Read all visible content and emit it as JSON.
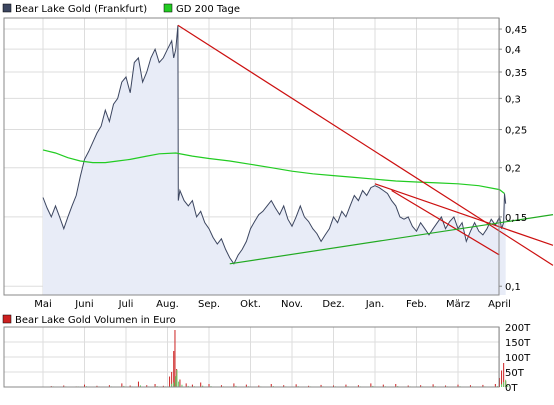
{
  "chart_data": [
    {
      "type": "line",
      "y_scale": "log",
      "ylim": [
        0.095,
        0.48
      ],
      "x_ticks": [
        "Mai",
        "Juni",
        "Juli",
        "Aug.",
        "Sep.",
        "Okt.",
        "Nov.",
        "Dez.",
        "Jan.",
        "Feb.",
        "März",
        "April"
      ],
      "y_ticks": [
        {
          "value": 0.1,
          "label": "0,1"
        },
        {
          "value": 0.15,
          "label": "0,15"
        },
        {
          "value": 0.2,
          "label": "0,2"
        },
        {
          "value": 0.25,
          "label": "0,25"
        },
        {
          "value": 0.3,
          "label": "0,3"
        },
        {
          "value": 0.35,
          "label": "0,35"
        },
        {
          "value": 0.4,
          "label": "0,4"
        },
        {
          "value": 0.45,
          "label": "0,45"
        }
      ],
      "grid": true,
      "legend": [
        {
          "label": "Bear Lake Gold (Frankfurt)",
          "color": "#3c4660"
        },
        {
          "label": "GD 200 Tage",
          "color": "#22cc22"
        }
      ],
      "series": [
        {
          "name": "Bear Lake Gold (Frankfurt)",
          "color": "#3c4660",
          "fill": "#e8ecf7",
          "points": [
            [
              0,
              0.168
            ],
            [
              0.1,
              0.158
            ],
            [
              0.2,
              0.15
            ],
            [
              0.3,
              0.16
            ],
            [
              0.4,
              0.15
            ],
            [
              0.5,
              0.14
            ],
            [
              0.6,
              0.15
            ],
            [
              0.7,
              0.16
            ],
            [
              0.8,
              0.17
            ],
            [
              0.9,
              0.19
            ],
            [
              1.0,
              0.21
            ],
            [
              1.1,
              0.22
            ],
            [
              1.2,
              0.232
            ],
            [
              1.3,
              0.245
            ],
            [
              1.4,
              0.255
            ],
            [
              1.5,
              0.28
            ],
            [
              1.6,
              0.262
            ],
            [
              1.7,
              0.29
            ],
            [
              1.8,
              0.3
            ],
            [
              1.9,
              0.33
            ],
            [
              2.0,
              0.34
            ],
            [
              2.1,
              0.31
            ],
            [
              2.2,
              0.37
            ],
            [
              2.3,
              0.38
            ],
            [
              2.4,
              0.33
            ],
            [
              2.5,
              0.35
            ],
            [
              2.6,
              0.38
            ],
            [
              2.7,
              0.4
            ],
            [
              2.8,
              0.37
            ],
            [
              2.9,
              0.38
            ],
            [
              3.0,
              0.4
            ],
            [
              3.1,
              0.42
            ],
            [
              3.15,
              0.38
            ],
            [
              3.2,
              0.4
            ],
            [
              3.25,
              0.46
            ],
            [
              3.26,
              0.165
            ],
            [
              3.3,
              0.175
            ],
            [
              3.4,
              0.165
            ],
            [
              3.5,
              0.16
            ],
            [
              3.6,
              0.165
            ],
            [
              3.7,
              0.15
            ],
            [
              3.8,
              0.155
            ],
            [
              3.9,
              0.145
            ],
            [
              4.0,
              0.14
            ],
            [
              4.1,
              0.133
            ],
            [
              4.2,
              0.128
            ],
            [
              4.3,
              0.132
            ],
            [
              4.4,
              0.124
            ],
            [
              4.5,
              0.118
            ],
            [
              4.6,
              0.114
            ],
            [
              4.7,
              0.12
            ],
            [
              4.8,
              0.124
            ],
            [
              4.9,
              0.13
            ],
            [
              5.0,
              0.14
            ],
            [
              5.1,
              0.146
            ],
            [
              5.2,
              0.152
            ],
            [
              5.3,
              0.155
            ],
            [
              5.4,
              0.16
            ],
            [
              5.5,
              0.165
            ],
            [
              5.6,
              0.158
            ],
            [
              5.7,
              0.152
            ],
            [
              5.8,
              0.16
            ],
            [
              5.9,
              0.148
            ],
            [
              6.0,
              0.142
            ],
            [
              6.1,
              0.15
            ],
            [
              6.2,
              0.16
            ],
            [
              6.3,
              0.15
            ],
            [
              6.4,
              0.146
            ],
            [
              6.5,
              0.14
            ],
            [
              6.6,
              0.136
            ],
            [
              6.7,
              0.13
            ],
            [
              6.8,
              0.135
            ],
            [
              6.9,
              0.14
            ],
            [
              7.0,
              0.15
            ],
            [
              7.1,
              0.145
            ],
            [
              7.2,
              0.155
            ],
            [
              7.3,
              0.15
            ],
            [
              7.4,
              0.16
            ],
            [
              7.5,
              0.17
            ],
            [
              7.6,
              0.165
            ],
            [
              7.7,
              0.175
            ],
            [
              7.8,
              0.17
            ],
            [
              7.9,
              0.178
            ],
            [
              8.0,
              0.18
            ],
            [
              8.1,
              0.178
            ],
            [
              8.2,
              0.175
            ],
            [
              8.3,
              0.172
            ],
            [
              8.4,
              0.165
            ],
            [
              8.5,
              0.16
            ],
            [
              8.6,
              0.15
            ],
            [
              8.7,
              0.148
            ],
            [
              8.8,
              0.15
            ],
            [
              8.9,
              0.142
            ],
            [
              9.0,
              0.138
            ],
            [
              9.1,
              0.145
            ],
            [
              9.2,
              0.14
            ],
            [
              9.3,
              0.135
            ],
            [
              9.4,
              0.14
            ],
            [
              9.5,
              0.145
            ],
            [
              9.6,
              0.15
            ],
            [
              9.7,
              0.14
            ],
            [
              9.8,
              0.146
            ],
            [
              9.9,
              0.15
            ],
            [
              10.0,
              0.14
            ],
            [
              10.1,
              0.145
            ],
            [
              10.2,
              0.13
            ],
            [
              10.3,
              0.138
            ],
            [
              10.4,
              0.145
            ],
            [
              10.5,
              0.138
            ],
            [
              10.6,
              0.135
            ],
            [
              10.7,
              0.14
            ],
            [
              10.8,
              0.148
            ],
            [
              10.9,
              0.143
            ],
            [
              11.0,
              0.15
            ],
            [
              11.05,
              0.14
            ],
            [
              11.1,
              0.145
            ],
            [
              11.12,
              0.172
            ],
            [
              11.15,
              0.162
            ]
          ]
        },
        {
          "name": "GD 200 Tage",
          "color": "#22cc22",
          "points": [
            [
              0,
              0.222
            ],
            [
              0.3,
              0.218
            ],
            [
              0.6,
              0.212
            ],
            [
              0.9,
              0.208
            ],
            [
              1.2,
              0.206
            ],
            [
              1.5,
              0.206
            ],
            [
              1.8,
              0.208
            ],
            [
              2.1,
              0.21
            ],
            [
              2.5,
              0.214
            ],
            [
              2.8,
              0.217
            ],
            [
              3.2,
              0.218
            ],
            [
              3.6,
              0.214
            ],
            [
              4.0,
              0.211
            ],
            [
              4.5,
              0.208
            ],
            [
              5.0,
              0.204
            ],
            [
              5.5,
              0.2
            ],
            [
              6.0,
              0.196
            ],
            [
              6.5,
              0.193
            ],
            [
              7.0,
              0.191
            ],
            [
              7.5,
              0.189
            ],
            [
              8.0,
              0.187
            ],
            [
              8.5,
              0.185
            ],
            [
              9.0,
              0.184
            ],
            [
              9.5,
              0.183
            ],
            [
              10.0,
              0.182
            ],
            [
              10.5,
              0.18
            ],
            [
              11.0,
              0.176
            ],
            [
              11.12,
              0.172
            ]
          ]
        }
      ],
      "trendlines": [
        {
          "color": "#cc1010",
          "from": [
            3.25,
            0.46
          ],
          "to": [
            12.4,
            0.113
          ]
        },
        {
          "color": "#cc1010",
          "from": [
            8.0,
            0.182
          ],
          "to": [
            12.4,
            0.127
          ]
        },
        {
          "color": "#cc1010",
          "from": [
            8.4,
            0.175
          ],
          "to": [
            11.0,
            0.12
          ]
        },
        {
          "color": "#22aa22",
          "from": [
            4.5,
            0.114
          ],
          "to": [
            12.4,
            0.152
          ]
        }
      ]
    },
    {
      "type": "bar",
      "legend": [
        {
          "label": "Bear Lake Gold Volumen in Euro",
          "color": "#cc2020"
        }
      ],
      "y_ticks": [
        {
          "value": 0,
          "label": "0T"
        },
        {
          "value": 50,
          "label": "50T"
        },
        {
          "value": 100,
          "label": "100T"
        },
        {
          "value": 150,
          "label": "150T"
        },
        {
          "value": 200,
          "label": "200T"
        }
      ],
      "ylim": [
        0,
        200
      ],
      "volumes": [
        [
          0.2,
          3
        ],
        [
          0.5,
          5
        ],
        [
          0.8,
          2
        ],
        [
          1.0,
          8
        ],
        [
          1.3,
          4
        ],
        [
          1.6,
          6
        ],
        [
          1.9,
          12
        ],
        [
          2.1,
          5
        ],
        [
          2.3,
          18
        ],
        [
          2.5,
          6
        ],
        [
          2.7,
          10
        ],
        [
          2.9,
          4
        ],
        [
          3.05,
          35
        ],
        [
          3.1,
          50
        ],
        [
          3.15,
          120
        ],
        [
          3.18,
          190
        ],
        [
          3.22,
          60
        ],
        [
          3.3,
          25
        ],
        [
          3.45,
          12
        ],
        [
          3.6,
          8
        ],
        [
          3.8,
          15
        ],
        [
          4.0,
          10
        ],
        [
          4.3,
          6
        ],
        [
          4.6,
          12
        ],
        [
          4.9,
          8
        ],
        [
          5.2,
          5
        ],
        [
          5.5,
          10
        ],
        [
          5.8,
          6
        ],
        [
          6.1,
          9
        ],
        [
          6.4,
          4
        ],
        [
          6.7,
          7
        ],
        [
          7.0,
          5
        ],
        [
          7.3,
          8
        ],
        [
          7.6,
          6
        ],
        [
          7.9,
          12
        ],
        [
          8.2,
          8
        ],
        [
          8.5,
          10
        ],
        [
          8.8,
          5
        ],
        [
          9.1,
          6
        ],
        [
          9.4,
          9
        ],
        [
          9.7,
          5
        ],
        [
          10.0,
          8
        ],
        [
          10.3,
          6
        ],
        [
          10.6,
          7
        ],
        [
          10.9,
          10
        ],
        [
          11.0,
          30
        ],
        [
          11.05,
          55
        ],
        [
          11.1,
          80
        ],
        [
          11.15,
          20
        ]
      ]
    }
  ]
}
